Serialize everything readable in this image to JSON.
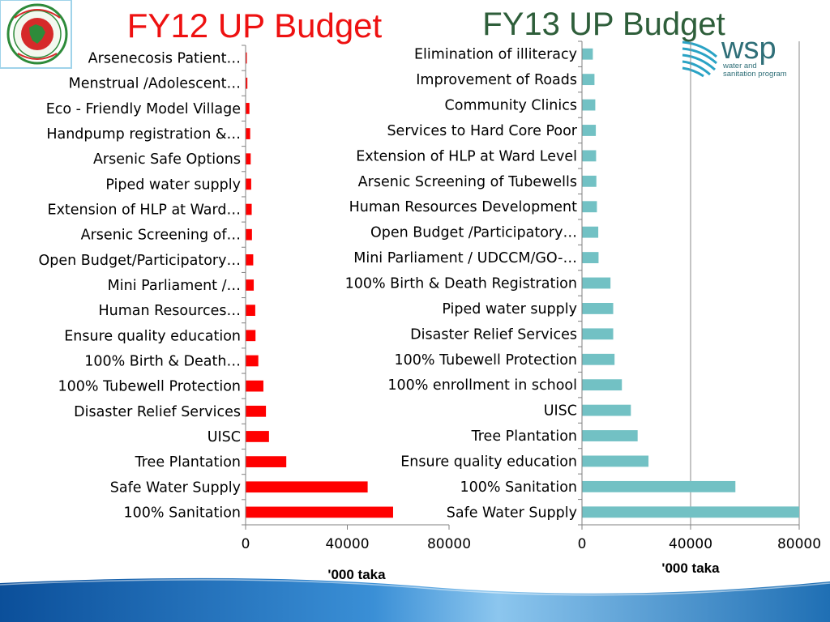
{
  "branding": {
    "wsp_name": "wsp",
    "wsp_tagline_1": "water and",
    "wsp_tagline_2": "sanitation program",
    "wsp_color": "#2f6f78",
    "footer_color": "#1f6fb4",
    "emblem_color": "#2e8b3a",
    "emblem_disc_color": "#d62a2a"
  },
  "chart_data": [
    {
      "type": "bar",
      "orientation": "horizontal",
      "title": "FY12 UP Budget",
      "title_color": "#ee1111",
      "bar_color": "#ff0000",
      "xlabel": "'000 taka",
      "xlim": [
        0,
        80000
      ],
      "xticks": [
        "0",
        "40000",
        "80000"
      ],
      "grid": false,
      "categories": [
        "Arsenecosis Patient…",
        "Menstrual /Adolescent…",
        "Eco - Friendly Model Village",
        "Handpump registration &…",
        "Arsenic Safe Options",
        "Piped water supply",
        "Extension of HLP at Ward…",
        "Arsenic Screening of…",
        "Open Budget/Participatory…",
        "Mini Parliament /…",
        "Human Resources…",
        "Ensure quality education",
        "100% Birth & Death…",
        "100% Tubewell Protection",
        "Disaster Relief Services",
        "UISC",
        "Tree Plantation",
        "Safe Water Supply",
        "100% Sanitation"
      ],
      "values": [
        500,
        700,
        1500,
        1800,
        2000,
        2200,
        2400,
        2500,
        3000,
        3200,
        3800,
        3900,
        5000,
        7000,
        8000,
        9200,
        16000,
        48000,
        58000
      ]
    },
    {
      "type": "bar",
      "orientation": "horizontal",
      "title": "FY13 UP Budget",
      "title_color": "#2e5e3a",
      "bar_color": "#72c1c4",
      "xlabel": "'000 taka",
      "xlim": [
        0,
        80000
      ],
      "xticks": [
        "0",
        "40000",
        "80000"
      ],
      "grid": true,
      "categories": [
        "Elimination of illiteracy",
        "Improvement of Roads",
        "Community Clinics",
        "Services to Hard Core Poor",
        "Extension of HLP at Ward Level",
        "Arsenic Screening of Tubewells",
        "Human Resources Development",
        "Open Budget /Participatory…",
        "Mini Parliament / UDCCM/GO-…",
        "100% Birth & Death Registration",
        "Piped water supply",
        "Disaster Relief Services",
        "100% Tubewell Protection",
        "100% enrollment in school",
        "UISC",
        "Tree Plantation",
        "Ensure quality education",
        "100% Sanitation",
        "Safe Water Supply"
      ],
      "values": [
        4000,
        4600,
        4900,
        5100,
        5200,
        5300,
        5500,
        6000,
        6100,
        10500,
        11500,
        11500,
        12000,
        14700,
        18000,
        20500,
        24500,
        56500,
        80000
      ]
    }
  ]
}
